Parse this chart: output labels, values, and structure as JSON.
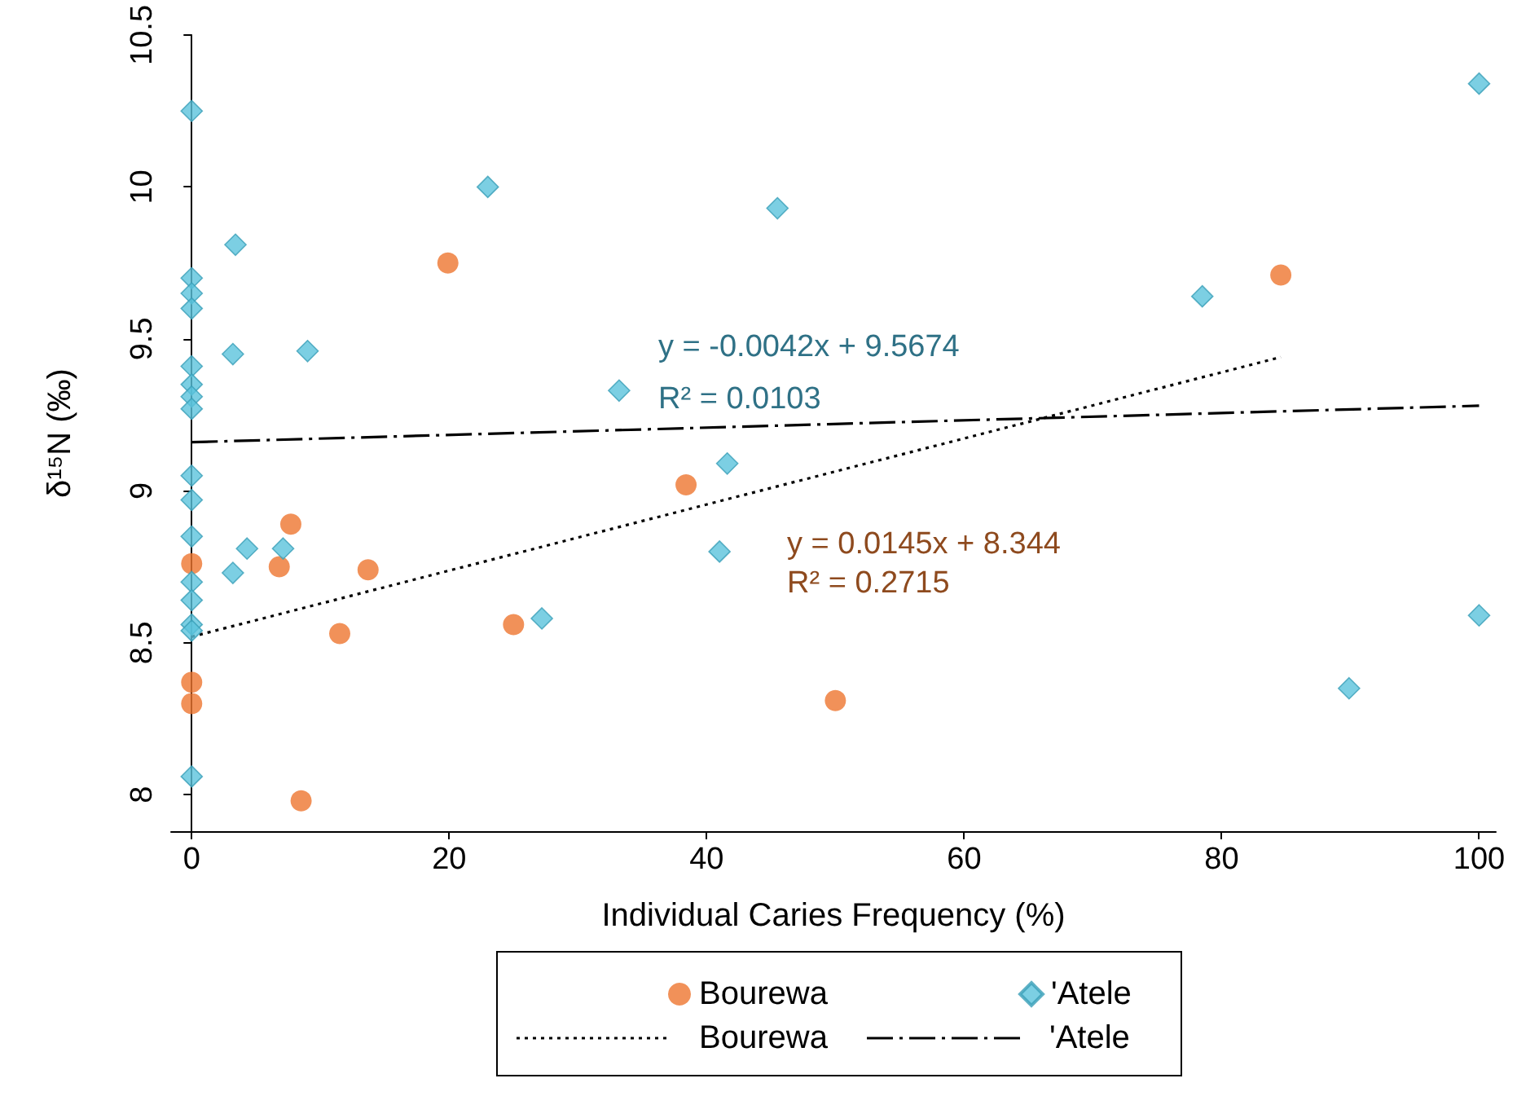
{
  "chart_data": {
    "type": "scatter",
    "xlabel": "Individual Caries Frequency (%)",
    "ylabel": "δ¹⁵N (‰)",
    "xlim": [
      -1.6,
      101.3
    ],
    "xticks": [
      0,
      20,
      40,
      60,
      80,
      100
    ],
    "ylim": [
      7.88,
      10.5
    ],
    "yticks": [
      8,
      8.5,
      9,
      9.5,
      10,
      10.5
    ],
    "grid": false,
    "legend": "bottom",
    "series": [
      {
        "name": "Bourewa",
        "marker": "circle",
        "color": "#ee762f",
        "x": [
          0,
          0,
          0,
          8.5,
          7.7,
          6.8,
          13.7,
          11.5,
          19.9,
          25,
          38.4,
          50,
          84.6
        ],
        "values": [
          8.76,
          8.37,
          8.3,
          7.98,
          8.89,
          8.75,
          8.74,
          8.53,
          9.75,
          8.56,
          9.02,
          8.31,
          9.71
        ]
      },
      {
        "name": "'Atele",
        "marker": "diamond",
        "color": "#5bc3dc",
        "x": [
          0,
          0,
          0,
          0,
          0,
          0,
          0,
          0,
          0,
          0,
          0,
          0,
          0,
          0,
          0,
          0,
          3.4,
          3.2,
          3.2,
          4.3,
          7.1,
          9,
          23,
          27.2,
          33.2,
          41,
          41.6,
          45.5,
          78.5,
          89.9,
          100,
          100
        ],
        "values": [
          10.25,
          9.7,
          9.65,
          9.6,
          9.41,
          9.35,
          9.31,
          9.27,
          9.05,
          8.97,
          8.85,
          8.7,
          8.64,
          8.56,
          8.54,
          8.06,
          9.81,
          9.45,
          8.73,
          8.81,
          8.81,
          9.46,
          10,
          8.58,
          9.33,
          8.8,
          9.09,
          9.93,
          9.64,
          8.35,
          10.34,
          8.59
        ]
      },
      {
        "name": "Bourewa",
        "type": "line",
        "marker": "none",
        "line_style": "dotted",
        "color": "#000000",
        "x": [
          0,
          84.6
        ],
        "values": [
          8.52,
          9.44
        ]
      },
      {
        "name": "'Atele",
        "type": "line",
        "marker": "none",
        "line_style": "dashed",
        "color": "#000000",
        "x": [
          0,
          100
        ],
        "values": [
          9.16,
          9.28
        ]
      }
    ],
    "annotations": [
      "y = -0.0042x + 9.5674",
      "R² = 0.0103",
      "y = 0.0145x + 8.344",
      "R² = 0.2715"
    ]
  }
}
